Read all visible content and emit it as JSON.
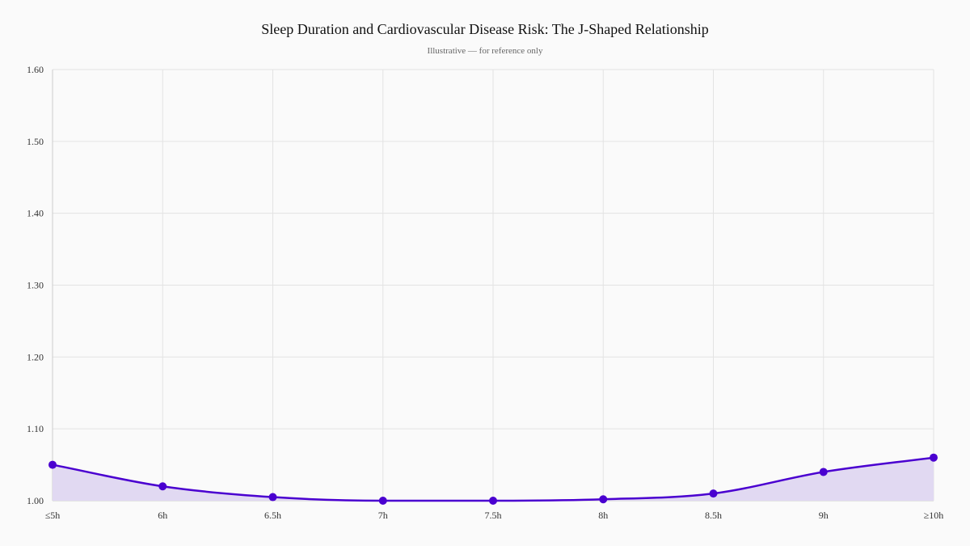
{
  "chart_data": {
    "type": "area",
    "title": "Sleep Duration and Cardiovascular Disease Risk: The J-Shaped Relationship",
    "subtitle": "Illustrative — for reference only",
    "xlabel": "",
    "ylabel": "",
    "categories": [
      "≤5h",
      "6h",
      "6.5h",
      "7h",
      "7.5h",
      "8h",
      "8.5h",
      "9h",
      "≥10h"
    ],
    "values": [
      1.05,
      1.02,
      1.005,
      1.0,
      1.0,
      1.002,
      1.01,
      1.04,
      1.06
    ],
    "ylim": [
      1.0,
      1.6
    ],
    "yticks": [
      "1.00",
      "1.10",
      "1.20",
      "1.30",
      "1.40",
      "1.50",
      "1.60"
    ],
    "grid": true,
    "legend": "none",
    "colors": {
      "line": "#4a00d0",
      "fill": "#e1d9f2",
      "grid": "#e3e3e3"
    }
  }
}
